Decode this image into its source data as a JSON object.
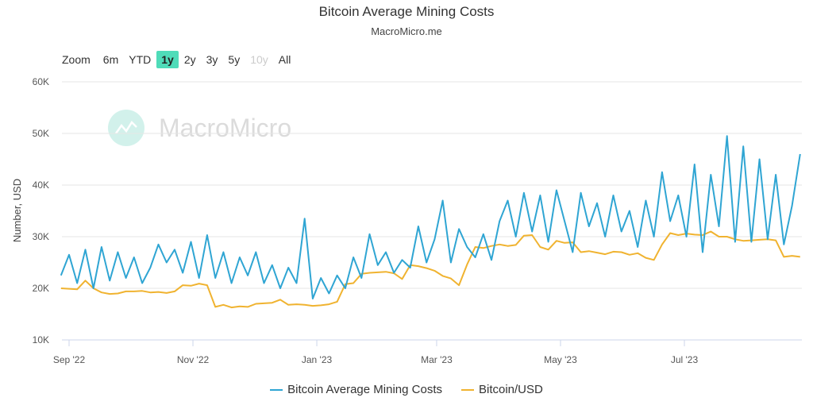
{
  "header": {
    "title": "Bitcoin Average Mining Costs",
    "subtitle": "MacroMicro.me"
  },
  "range_selector": {
    "label": "Zoom",
    "buttons": [
      {
        "label": "6m",
        "state": "normal"
      },
      {
        "label": "YTD",
        "state": "normal"
      },
      {
        "label": "1y",
        "state": "active"
      },
      {
        "label": "2y",
        "state": "normal"
      },
      {
        "label": "3y",
        "state": "normal"
      },
      {
        "label": "5y",
        "state": "normal"
      },
      {
        "label": "10y",
        "state": "disabled"
      },
      {
        "label": "All",
        "state": "normal"
      }
    ],
    "active_color": "#4fdcb9"
  },
  "watermark": {
    "text": "MacroMicro"
  },
  "chart_data": {
    "type": "line",
    "title": "Bitcoin Average Mining Costs",
    "subtitle": "MacroMicro.me",
    "xlabel": "",
    "ylabel": "Number, USD",
    "ylim": [
      10000,
      60000
    ],
    "y_ticks": [
      {
        "value": 10000,
        "label": "10K"
      },
      {
        "value": 20000,
        "label": "20K"
      },
      {
        "value": 30000,
        "label": "30K"
      },
      {
        "value": 40000,
        "label": "40K"
      },
      {
        "value": 50000,
        "label": "50K"
      },
      {
        "value": 60000,
        "label": "60K"
      }
    ],
    "x_ticks": [
      {
        "date": "2022-09-01",
        "label": "Sep '22"
      },
      {
        "date": "2022-11-01",
        "label": "Nov '22"
      },
      {
        "date": "2023-01-01",
        "label": "Jan '23"
      },
      {
        "date": "2023-03-01",
        "label": "Mar '23"
      },
      {
        "date": "2023-05-01",
        "label": "May '23"
      },
      {
        "date": "2023-07-01",
        "label": "Jul '23"
      }
    ],
    "xlim": [
      "2022-08-28",
      "2023-08-27"
    ],
    "grid": true,
    "legend_position": "bottom",
    "x": [
      "2022-08-28",
      "2022-09-01",
      "2022-09-05",
      "2022-09-09",
      "2022-09-13",
      "2022-09-17",
      "2022-09-21",
      "2022-09-25",
      "2022-09-29",
      "2022-10-03",
      "2022-10-07",
      "2022-10-11",
      "2022-10-15",
      "2022-10-19",
      "2022-10-23",
      "2022-10-27",
      "2022-10-31",
      "2022-11-04",
      "2022-11-08",
      "2022-11-12",
      "2022-11-16",
      "2022-11-20",
      "2022-11-24",
      "2022-11-28",
      "2022-12-02",
      "2022-12-06",
      "2022-12-10",
      "2022-12-14",
      "2022-12-18",
      "2022-12-22",
      "2022-12-26",
      "2022-12-30",
      "2023-01-03",
      "2023-01-07",
      "2023-01-11",
      "2023-01-15",
      "2023-01-19",
      "2023-01-23",
      "2023-01-27",
      "2023-01-31",
      "2023-02-04",
      "2023-02-08",
      "2023-02-12",
      "2023-02-16",
      "2023-02-20",
      "2023-02-24",
      "2023-02-28",
      "2023-03-04",
      "2023-03-08",
      "2023-03-12",
      "2023-03-16",
      "2023-03-20",
      "2023-03-24",
      "2023-03-28",
      "2023-04-01",
      "2023-04-05",
      "2023-04-09",
      "2023-04-13",
      "2023-04-17",
      "2023-04-21",
      "2023-04-25",
      "2023-04-29",
      "2023-05-03",
      "2023-05-07",
      "2023-05-11",
      "2023-05-15",
      "2023-05-19",
      "2023-05-23",
      "2023-05-27",
      "2023-05-31",
      "2023-06-04",
      "2023-06-08",
      "2023-06-12",
      "2023-06-16",
      "2023-06-20",
      "2023-06-24",
      "2023-06-28",
      "2023-07-02",
      "2023-07-06",
      "2023-07-10",
      "2023-07-14",
      "2023-07-18",
      "2023-07-22",
      "2023-07-26",
      "2023-07-30",
      "2023-08-03",
      "2023-08-07",
      "2023-08-11",
      "2023-08-15",
      "2023-08-19",
      "2023-08-23",
      "2023-08-27"
    ],
    "series": [
      {
        "name": "Bitcoin Average Mining Costs",
        "color": "#2fa5d3",
        "values": [
          22500,
          26500,
          21000,
          27500,
          20000,
          28000,
          21500,
          27000,
          22000,
          26000,
          21000,
          24000,
          28500,
          25000,
          27500,
          23000,
          29000,
          22000,
          30300,
          22000,
          27000,
          21000,
          26000,
          22500,
          27000,
          21000,
          24500,
          20000,
          24000,
          21000,
          33500,
          18000,
          22000,
          19000,
          22500,
          20000,
          26000,
          22000,
          30500,
          24500,
          27000,
          23000,
          25500,
          24000,
          32000,
          25000,
          29500,
          37000,
          25000,
          31500,
          28000,
          26000,
          30500,
          25500,
          33000,
          37000,
          30000,
          38500,
          31000,
          38000,
          29000,
          39000,
          33000,
          27000,
          38500,
          32000,
          36500,
          30000,
          38000,
          31000,
          35000,
          28000,
          37000,
          30000,
          42500,
          33000,
          38000,
          30000,
          44000,
          27000,
          42000,
          32000,
          49500,
          29000,
          47500,
          29000,
          45000,
          29500,
          42000,
          28500,
          36000,
          46000
        ]
      },
      {
        "name": "Bitcoin/USD",
        "color": "#f0b330",
        "values": [
          20000,
          19900,
          19800,
          21500,
          20000,
          19200,
          18900,
          19000,
          19400,
          19400,
          19500,
          19200,
          19300,
          19100,
          19400,
          20600,
          20500,
          20900,
          20600,
          16400,
          16800,
          16300,
          16500,
          16400,
          17000,
          17100,
          17200,
          17800,
          16800,
          16900,
          16800,
          16600,
          16700,
          16900,
          17400,
          20800,
          21000,
          22800,
          23000,
          23100,
          23200,
          22900,
          21800,
          24500,
          24300,
          23900,
          23400,
          22400,
          21900,
          20600,
          24600,
          28000,
          27800,
          28200,
          28500,
          28200,
          28400,
          30200,
          30300,
          28000,
          27500,
          29200,
          28800,
          28900,
          27000,
          27200,
          26900,
          26600,
          27100,
          27000,
          26500,
          26800,
          25900,
          25500,
          28500,
          30700,
          30300,
          30600,
          30400,
          30300,
          31000,
          30000,
          30000,
          29500,
          29200,
          29300,
          29400,
          29500,
          29300,
          26100,
          26300,
          26100
        ]
      }
    ]
  }
}
